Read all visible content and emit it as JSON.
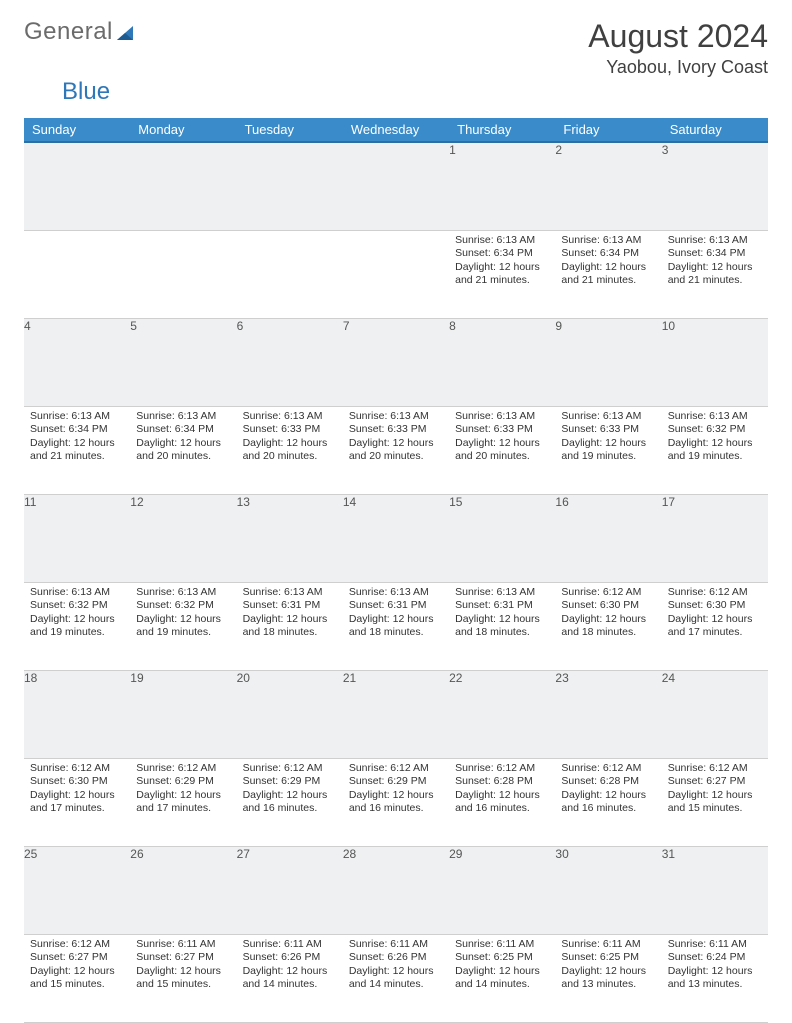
{
  "logo": {
    "text1": "General",
    "text2": "Blue"
  },
  "header": {
    "month": "August 2024",
    "location": "Yaobou, Ivory Coast"
  },
  "colors": {
    "header_bg": "#3a8bc9",
    "header_border": "#2e6fa3",
    "daynum_bg": "#eef0f1",
    "cell_border": "#cfcfcf",
    "logo_gray": "#6b6b6b",
    "logo_blue": "#2e77b8"
  },
  "weekdays": [
    "Sunday",
    "Monday",
    "Tuesday",
    "Wednesday",
    "Thursday",
    "Friday",
    "Saturday"
  ],
  "weeks": [
    [
      null,
      null,
      null,
      null,
      {
        "n": "1",
        "sr": "6:13 AM",
        "ss": "6:34 PM",
        "dl": "12 hours and 21 minutes."
      },
      {
        "n": "2",
        "sr": "6:13 AM",
        "ss": "6:34 PM",
        "dl": "12 hours and 21 minutes."
      },
      {
        "n": "3",
        "sr": "6:13 AM",
        "ss": "6:34 PM",
        "dl": "12 hours and 21 minutes."
      }
    ],
    [
      {
        "n": "4",
        "sr": "6:13 AM",
        "ss": "6:34 PM",
        "dl": "12 hours and 21 minutes."
      },
      {
        "n": "5",
        "sr": "6:13 AM",
        "ss": "6:34 PM",
        "dl": "12 hours and 20 minutes."
      },
      {
        "n": "6",
        "sr": "6:13 AM",
        "ss": "6:33 PM",
        "dl": "12 hours and 20 minutes."
      },
      {
        "n": "7",
        "sr": "6:13 AM",
        "ss": "6:33 PM",
        "dl": "12 hours and 20 minutes."
      },
      {
        "n": "8",
        "sr": "6:13 AM",
        "ss": "6:33 PM",
        "dl": "12 hours and 20 minutes."
      },
      {
        "n": "9",
        "sr": "6:13 AM",
        "ss": "6:33 PM",
        "dl": "12 hours and 19 minutes."
      },
      {
        "n": "10",
        "sr": "6:13 AM",
        "ss": "6:32 PM",
        "dl": "12 hours and 19 minutes."
      }
    ],
    [
      {
        "n": "11",
        "sr": "6:13 AM",
        "ss": "6:32 PM",
        "dl": "12 hours and 19 minutes."
      },
      {
        "n": "12",
        "sr": "6:13 AM",
        "ss": "6:32 PM",
        "dl": "12 hours and 19 minutes."
      },
      {
        "n": "13",
        "sr": "6:13 AM",
        "ss": "6:31 PM",
        "dl": "12 hours and 18 minutes."
      },
      {
        "n": "14",
        "sr": "6:13 AM",
        "ss": "6:31 PM",
        "dl": "12 hours and 18 minutes."
      },
      {
        "n": "15",
        "sr": "6:13 AM",
        "ss": "6:31 PM",
        "dl": "12 hours and 18 minutes."
      },
      {
        "n": "16",
        "sr": "6:12 AM",
        "ss": "6:30 PM",
        "dl": "12 hours and 18 minutes."
      },
      {
        "n": "17",
        "sr": "6:12 AM",
        "ss": "6:30 PM",
        "dl": "12 hours and 17 minutes."
      }
    ],
    [
      {
        "n": "18",
        "sr": "6:12 AM",
        "ss": "6:30 PM",
        "dl": "12 hours and 17 minutes."
      },
      {
        "n": "19",
        "sr": "6:12 AM",
        "ss": "6:29 PM",
        "dl": "12 hours and 17 minutes."
      },
      {
        "n": "20",
        "sr": "6:12 AM",
        "ss": "6:29 PM",
        "dl": "12 hours and 16 minutes."
      },
      {
        "n": "21",
        "sr": "6:12 AM",
        "ss": "6:29 PM",
        "dl": "12 hours and 16 minutes."
      },
      {
        "n": "22",
        "sr": "6:12 AM",
        "ss": "6:28 PM",
        "dl": "12 hours and 16 minutes."
      },
      {
        "n": "23",
        "sr": "6:12 AM",
        "ss": "6:28 PM",
        "dl": "12 hours and 16 minutes."
      },
      {
        "n": "24",
        "sr": "6:12 AM",
        "ss": "6:27 PM",
        "dl": "12 hours and 15 minutes."
      }
    ],
    [
      {
        "n": "25",
        "sr": "6:12 AM",
        "ss": "6:27 PM",
        "dl": "12 hours and 15 minutes."
      },
      {
        "n": "26",
        "sr": "6:11 AM",
        "ss": "6:27 PM",
        "dl": "12 hours and 15 minutes."
      },
      {
        "n": "27",
        "sr": "6:11 AM",
        "ss": "6:26 PM",
        "dl": "12 hours and 14 minutes."
      },
      {
        "n": "28",
        "sr": "6:11 AM",
        "ss": "6:26 PM",
        "dl": "12 hours and 14 minutes."
      },
      {
        "n": "29",
        "sr": "6:11 AM",
        "ss": "6:25 PM",
        "dl": "12 hours and 14 minutes."
      },
      {
        "n": "30",
        "sr": "6:11 AM",
        "ss": "6:25 PM",
        "dl": "12 hours and 13 minutes."
      },
      {
        "n": "31",
        "sr": "6:11 AM",
        "ss": "6:24 PM",
        "dl": "12 hours and 13 minutes."
      }
    ]
  ],
  "labels": {
    "sunrise": "Sunrise: ",
    "sunset": "Sunset: ",
    "daylight": "Daylight: "
  }
}
